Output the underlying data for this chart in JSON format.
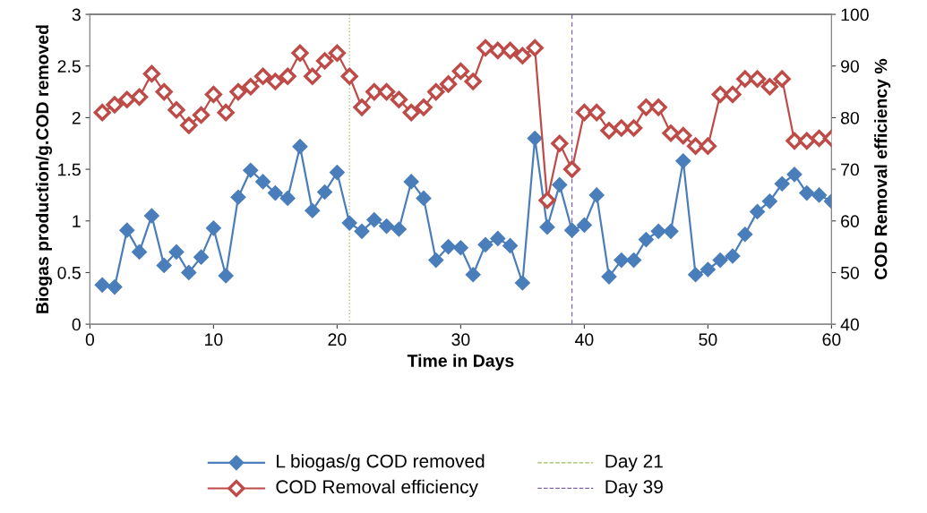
{
  "chart_data": {
    "type": "line",
    "xlabel": "Time in Days",
    "ylabel": "Biogas production/g.COD removed",
    "y2label": "COD Removal efficiency %",
    "x": [
      1,
      2,
      3,
      4,
      5,
      6,
      7,
      8,
      9,
      10,
      11,
      12,
      13,
      14,
      15,
      16,
      17,
      18,
      19,
      20,
      21,
      22,
      23,
      24,
      25,
      26,
      27,
      28,
      29,
      30,
      31,
      32,
      33,
      34,
      35,
      36,
      37,
      38,
      39,
      40,
      41,
      42,
      43,
      44,
      45,
      46,
      47,
      48,
      49,
      50,
      51,
      52,
      53,
      54,
      55,
      56,
      57,
      58,
      59,
      60
    ],
    "series": [
      {
        "name": "L biogas/g COD removed",
        "color": "#4a7ebb",
        "values": [
          0.38,
          0.36,
          0.91,
          0.7,
          1.05,
          0.57,
          0.7,
          0.5,
          0.65,
          0.93,
          0.47,
          1.23,
          1.49,
          1.38,
          1.27,
          1.22,
          1.72,
          1.1,
          1.28,
          1.47,
          0.98,
          0.9,
          1.01,
          0.95,
          0.92,
          1.38,
          1.22,
          0.62,
          0.75,
          0.74,
          0.48,
          0.77,
          0.83,
          0.76,
          0.4,
          1.8,
          0.94,
          1.35,
          0.91,
          0.96,
          1.25,
          0.46,
          0.62,
          0.62,
          0.82,
          0.9,
          0.9,
          1.58,
          0.48,
          0.53,
          0.62,
          0.66,
          0.87,
          1.09,
          1.19,
          1.36,
          1.45,
          1.27,
          1.25,
          1.19
        ]
      },
      {
        "name": "COD Removal efficiency",
        "color": "#be4b48",
        "axis": "y2",
        "values": [
          81,
          82.5,
          83.5,
          84,
          88.5,
          85,
          81.5,
          78.5,
          80.5,
          84.5,
          81,
          85,
          86,
          88,
          87,
          88,
          92.5,
          88,
          91,
          92.5,
          88,
          82,
          85,
          85,
          83.5,
          81,
          82,
          85,
          86.5,
          89,
          87,
          93.5,
          93,
          93,
          92,
          93.5,
          64,
          75,
          70,
          81,
          81,
          77.5,
          78,
          78,
          82,
          82,
          77,
          76.5,
          74.5,
          74.5,
          84.5,
          84.5,
          87.5,
          87.5,
          86,
          87.5,
          75.5,
          75.5,
          76,
          76
        ]
      }
    ],
    "ref_lines": [
      {
        "axis": "x",
        "value": 21,
        "label": "Day 21",
        "color": "#9bbb59",
        "line_style": "dotted"
      },
      {
        "axis": "x",
        "value": 39,
        "label": "Day 39",
        "color": "#8064a2",
        "line_style": "dashed"
      }
    ],
    "xlim": [
      0,
      60
    ],
    "xticks": [
      0,
      10,
      20,
      30,
      40,
      50,
      60
    ],
    "ylim": [
      0,
      3
    ],
    "yticks": [
      0,
      0.5,
      1,
      1.5,
      2,
      2.5,
      3
    ],
    "y2lim": [
      40,
      100
    ],
    "y2ticks": [
      40,
      50,
      60,
      70,
      80,
      90,
      100
    ],
    "marker": "diamond",
    "line_style": "solid",
    "grid": false,
    "legend": "bottom"
  }
}
